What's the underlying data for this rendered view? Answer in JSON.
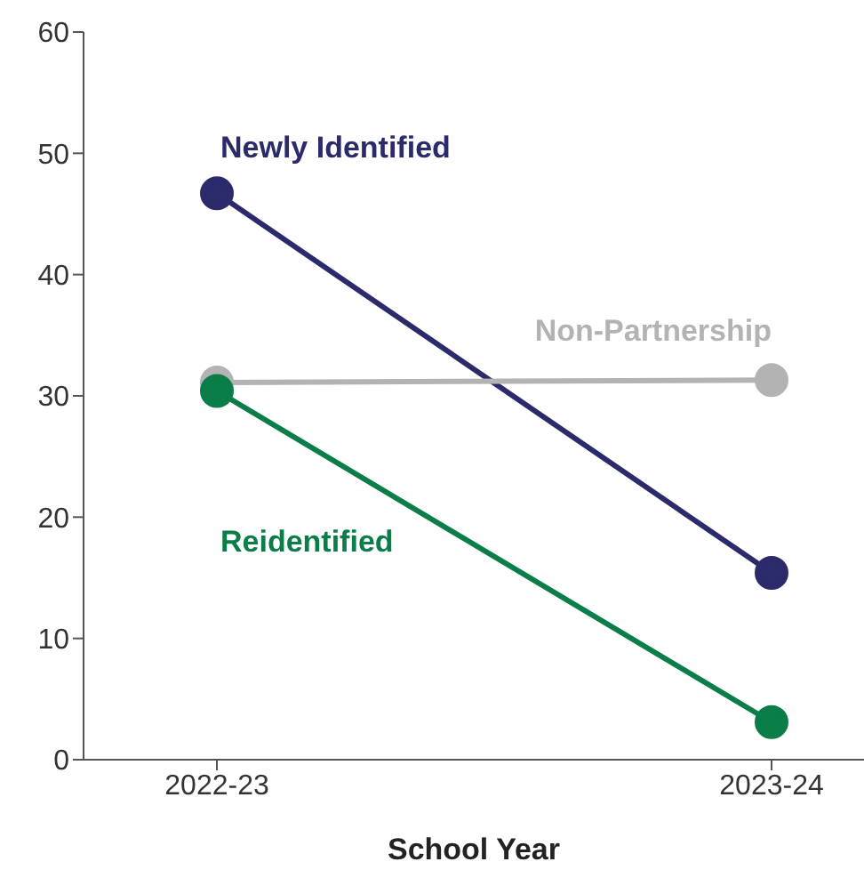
{
  "chart_data": {
    "type": "line",
    "xlabel": "School Year",
    "categories": [
      "2022-23",
      "2023-24"
    ],
    "series": [
      {
        "name": "Newly Identified",
        "color": "#2b2a6b",
        "values": [
          46.7,
          15.4
        ]
      },
      {
        "name": "Non-Partnership",
        "color": "#b3b3b3",
        "values": [
          31.1,
          31.3
        ]
      },
      {
        "name": "Reidentified",
        "color": "#0b7d48",
        "values": [
          30.4,
          3.1
        ]
      }
    ],
    "ylim": [
      0,
      60
    ],
    "yticks": [
      0,
      10,
      20,
      30,
      40,
      50,
      60
    ],
    "grid": false,
    "legend": false,
    "marker": "circle",
    "line_style": "solid"
  }
}
